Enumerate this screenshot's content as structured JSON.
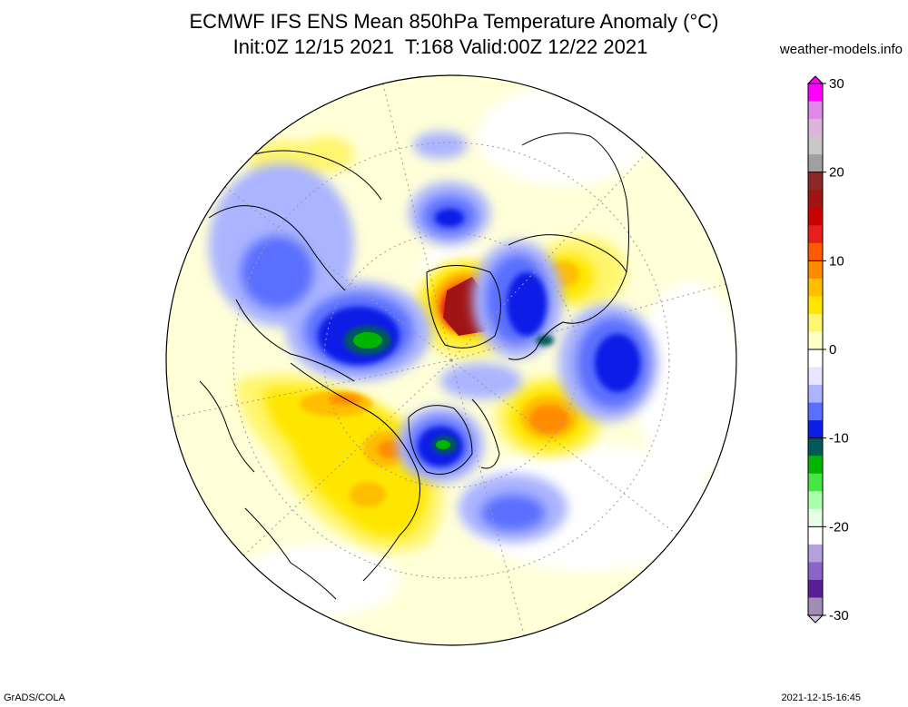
{
  "header": {
    "title_line1": "ECMWF IFS ENS Mean 850hPa Temperature Anomaly (°C)",
    "title_line2": "Init:0Z 12/15 2021  T:168 Valid:00Z 12/22 2021",
    "site": "weather-models.info"
  },
  "footer": {
    "left": "GrADS/COLA",
    "right": "2021-12-15-16:45"
  },
  "colorbar": {
    "labels": [
      "30",
      "20",
      "10",
      "0",
      "-10",
      "-20",
      "-30"
    ],
    "stops": [
      {
        "value": 30,
        "color": "#ff00ff"
      },
      {
        "value": 28,
        "color": "#e088e8"
      },
      {
        "value": 26,
        "color": "#dcb4dc"
      },
      {
        "value": 24,
        "color": "#c8c8c8"
      },
      {
        "value": 22,
        "color": "#a0a0a0"
      },
      {
        "value": 20,
        "color": "#8c2828"
      },
      {
        "value": 18,
        "color": "#a01414"
      },
      {
        "value": 16,
        "color": "#c80000"
      },
      {
        "value": 14,
        "color": "#e61e1e"
      },
      {
        "value": 12,
        "color": "#ff5a00"
      },
      {
        "value": 10,
        "color": "#ff8c00"
      },
      {
        "value": 8,
        "color": "#ffbe00"
      },
      {
        "value": 6,
        "color": "#ffe600"
      },
      {
        "value": 4,
        "color": "#fff56e"
      },
      {
        "value": 2,
        "color": "#ffffc8"
      },
      {
        "value": 0,
        "color": "#ffffff"
      },
      {
        "value": -2,
        "color": "#e6e6ff"
      },
      {
        "value": -4,
        "color": "#aab4ff"
      },
      {
        "value": -6,
        "color": "#5a6eff"
      },
      {
        "value": -8,
        "color": "#0a1ee6"
      },
      {
        "value": -10,
        "color": "#005a5a"
      },
      {
        "value": -12,
        "color": "#00b400"
      },
      {
        "value": -14,
        "color": "#46e646"
      },
      {
        "value": -16,
        "color": "#aaffaa"
      },
      {
        "value": -18,
        "color": "#e6ffe6"
      },
      {
        "value": -20,
        "color": "#ffffff"
      },
      {
        "value": -22,
        "color": "#b4a0dc"
      },
      {
        "value": -24,
        "color": "#8c64c8"
      },
      {
        "value": -26,
        "color": "#5a1e96"
      },
      {
        "value": -28,
        "color": "#a08cb4"
      },
      {
        "value": -30,
        "color": "#d2c8dc"
      }
    ]
  },
  "map_features": {
    "projection": "north-polar-stereographic",
    "anomalies": [
      {
        "name": "greenland-warm",
        "sign": "warm",
        "peak": 14
      },
      {
        "name": "west-russia-cold",
        "sign": "cold",
        "peak": -12
      },
      {
        "name": "canada-cold",
        "sign": "cold",
        "peak": -10
      },
      {
        "name": "alaska-cold",
        "sign": "cold",
        "peak": -12
      },
      {
        "name": "siberia-warm",
        "sign": "warm",
        "peak": 10
      },
      {
        "name": "north-pacific-warm",
        "sign": "warm",
        "peak": 12
      },
      {
        "name": "north-atlantic-cold",
        "sign": "cold",
        "peak": -8
      },
      {
        "name": "pacific-cold",
        "sign": "cold",
        "peak": -6
      }
    ]
  }
}
